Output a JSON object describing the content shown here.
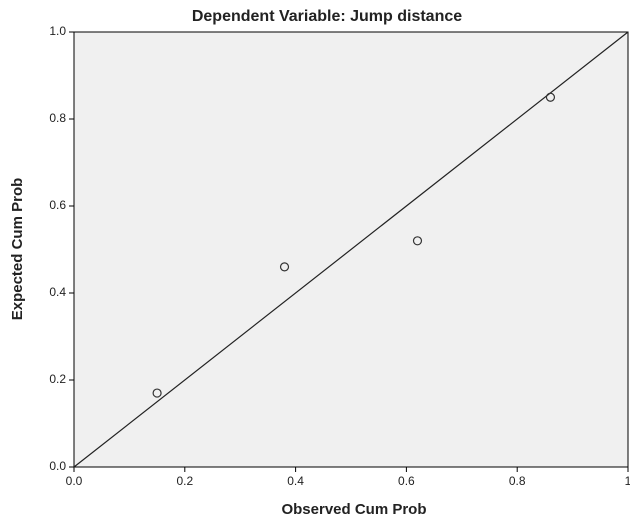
{
  "chart_data": {
    "type": "scatter",
    "title": "Dependent Variable: Jump distance",
    "xlabel": "Observed Cum Prob",
    "ylabel": "Expected Cum Prob",
    "x": [
      0.15,
      0.38,
      0.62,
      0.86
    ],
    "values": [
      0.17,
      0.46,
      0.52,
      0.85
    ],
    "xlim": [
      0,
      1
    ],
    "ylim": [
      0,
      1
    ],
    "xticks": [
      {
        "value": 0,
        "label": "0.0"
      },
      0.2,
      0.4,
      0.6,
      0.8,
      1
    ],
    "yticks": [
      {
        "value": 0,
        "label": "0.0"
      },
      0.2,
      0.4,
      0.6,
      0.8,
      {
        "value": 1,
        "label": "1.0"
      }
    ],
    "color": "#333333"
  }
}
